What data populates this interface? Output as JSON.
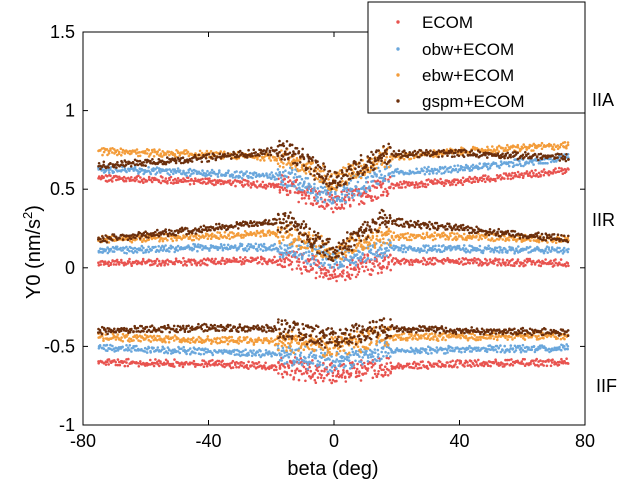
{
  "chart_data": {
    "type": "scatter",
    "title": "",
    "xlabel": "beta (deg)",
    "ylabel_main": "Y0 (nm/s",
    "ylabel_sup": "2",
    "ylabel_close": ")",
    "xlim": [
      -80,
      80
    ],
    "ylim": [
      -1,
      1.5
    ],
    "xticks": [
      -80,
      -40,
      0,
      40,
      80
    ],
    "xtick_labels": [
      "-80",
      "-40",
      "0",
      "40",
      "80"
    ],
    "yticks": [
      -1,
      -0.5,
      0,
      0.5,
      1,
      1.5
    ],
    "ytick_labels": [
      "-1",
      "-0.5",
      "0",
      "0.5",
      "1",
      "1.5"
    ],
    "grid": false,
    "legend_position": "top-right",
    "beta_range": [
      -75,
      75
    ],
    "series": [
      {
        "name": "ECOM",
        "color": "#e8534f"
      },
      {
        "name": "obw+ECOM",
        "color": "#6aa7dc"
      },
      {
        "name": "ebw+ECOM",
        "color": "#f39c3a"
      },
      {
        "name": "gspm+ECOM",
        "color": "#6b2f0c"
      }
    ],
    "groups": [
      {
        "label": "IIA",
        "bands": {
          "ECOM": [
            [
              -75,
              0.57
            ],
            [
              -40,
              0.55
            ],
            [
              -15,
              0.52
            ],
            [
              0,
              0.4
            ],
            [
              15,
              0.52
            ],
            [
              40,
              0.55
            ],
            [
              75,
              0.62
            ]
          ],
          "obw+ECOM": [
            [
              -75,
              0.63
            ],
            [
              -40,
              0.6
            ],
            [
              -15,
              0.58
            ],
            [
              0,
              0.45
            ],
            [
              15,
              0.6
            ],
            [
              40,
              0.63
            ],
            [
              75,
              0.7
            ]
          ],
          "ebw+ECOM": [
            [
              -75,
              0.74
            ],
            [
              -40,
              0.72
            ],
            [
              -15,
              0.7
            ],
            [
              0,
              0.55
            ],
            [
              15,
              0.7
            ],
            [
              40,
              0.74
            ],
            [
              75,
              0.78
            ]
          ],
          "gspm+ECOM": [
            [
              -75,
              0.65
            ],
            [
              -40,
              0.7
            ],
            [
              -15,
              0.75
            ],
            [
              0,
              0.55
            ],
            [
              15,
              0.72
            ],
            [
              40,
              0.73
            ],
            [
              75,
              0.7
            ]
          ]
        }
      },
      {
        "label": "IIR",
        "bands": {
          "ECOM": [
            [
              -75,
              0.03
            ],
            [
              -40,
              0.04
            ],
            [
              -15,
              0.05
            ],
            [
              0,
              -0.02
            ],
            [
              15,
              0.04
            ],
            [
              40,
              0.04
            ],
            [
              75,
              0.03
            ]
          ],
          "obw+ECOM": [
            [
              -75,
              0.11
            ],
            [
              -40,
              0.13
            ],
            [
              -15,
              0.13
            ],
            [
              0,
              0.05
            ],
            [
              15,
              0.12
            ],
            [
              40,
              0.12
            ],
            [
              75,
              0.11
            ]
          ],
          "ebw+ECOM": [
            [
              -75,
              0.18
            ],
            [
              -40,
              0.2
            ],
            [
              -15,
              0.22
            ],
            [
              0,
              0.1
            ],
            [
              15,
              0.2
            ],
            [
              40,
              0.2
            ],
            [
              75,
              0.18
            ]
          ],
          "gspm+ECOM": [
            [
              -75,
              0.18
            ],
            [
              -40,
              0.25
            ],
            [
              -15,
              0.3
            ],
            [
              0,
              0.1
            ],
            [
              15,
              0.3
            ],
            [
              40,
              0.25
            ],
            [
              75,
              0.18
            ]
          ]
        }
      },
      {
        "label": "IIF",
        "bands": {
          "ECOM": [
            [
              -75,
              -0.6
            ],
            [
              -40,
              -0.61
            ],
            [
              -15,
              -0.63
            ],
            [
              0,
              -0.68
            ],
            [
              15,
              -0.63
            ],
            [
              40,
              -0.61
            ],
            [
              75,
              -0.6
            ]
          ],
          "obw+ECOM": [
            [
              -75,
              -0.51
            ],
            [
              -40,
              -0.53
            ],
            [
              -15,
              -0.55
            ],
            [
              0,
              -0.6
            ],
            [
              15,
              -0.53
            ],
            [
              40,
              -0.52
            ],
            [
              75,
              -0.51
            ]
          ],
          "ebw+ECOM": [
            [
              -75,
              -0.44
            ],
            [
              -40,
              -0.46
            ],
            [
              -15,
              -0.47
            ],
            [
              0,
              -0.5
            ],
            [
              15,
              -0.44
            ],
            [
              40,
              -0.44
            ],
            [
              75,
              -0.43
            ]
          ],
          "gspm+ECOM": [
            [
              -75,
              -0.4
            ],
            [
              -40,
              -0.38
            ],
            [
              -15,
              -0.39
            ],
            [
              0,
              -0.45
            ],
            [
              15,
              -0.38
            ],
            [
              40,
              -0.4
            ],
            [
              75,
              -0.41
            ]
          ]
        }
      }
    ]
  }
}
